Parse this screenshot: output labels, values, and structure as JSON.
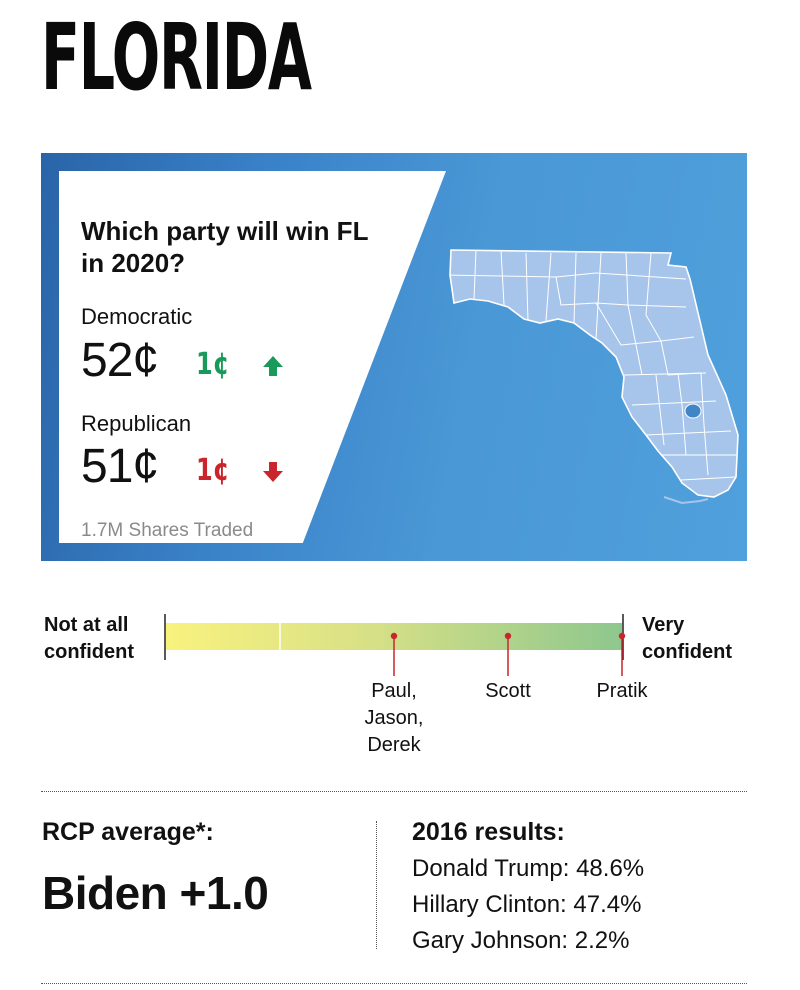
{
  "state_title": "FLORIDA",
  "market": {
    "question": "Which party will win FL in 2020?",
    "democratic": {
      "label": "Democratic",
      "price": "52¢",
      "change": "1¢",
      "direction": "up",
      "color": "#1a9a5a"
    },
    "republican": {
      "label": "Republican",
      "price": "51¢",
      "change": "1¢",
      "direction": "down",
      "color": "#c8262c"
    },
    "shares": "1.7M Shares Traded",
    "panel_color": "#3a82c8"
  },
  "confidence": {
    "left_label": "Not at all\nconfident",
    "right_label": "Very\nconfident",
    "markers": [
      {
        "name": "Paul,\nJason,\nDerek",
        "level": 0.5
      },
      {
        "name": "Scott",
        "level": 0.75
      },
      {
        "name": "Pratik",
        "level": 1.0
      }
    ]
  },
  "rcp": {
    "label": "RCP average*:",
    "value": "Biden +1.0"
  },
  "results_2016": {
    "title": "2016 results:",
    "lines": [
      "Donald Trump: 48.6%",
      "Hillary Clinton: 47.4%",
      "Gary Johnson: 2.2%"
    ]
  }
}
